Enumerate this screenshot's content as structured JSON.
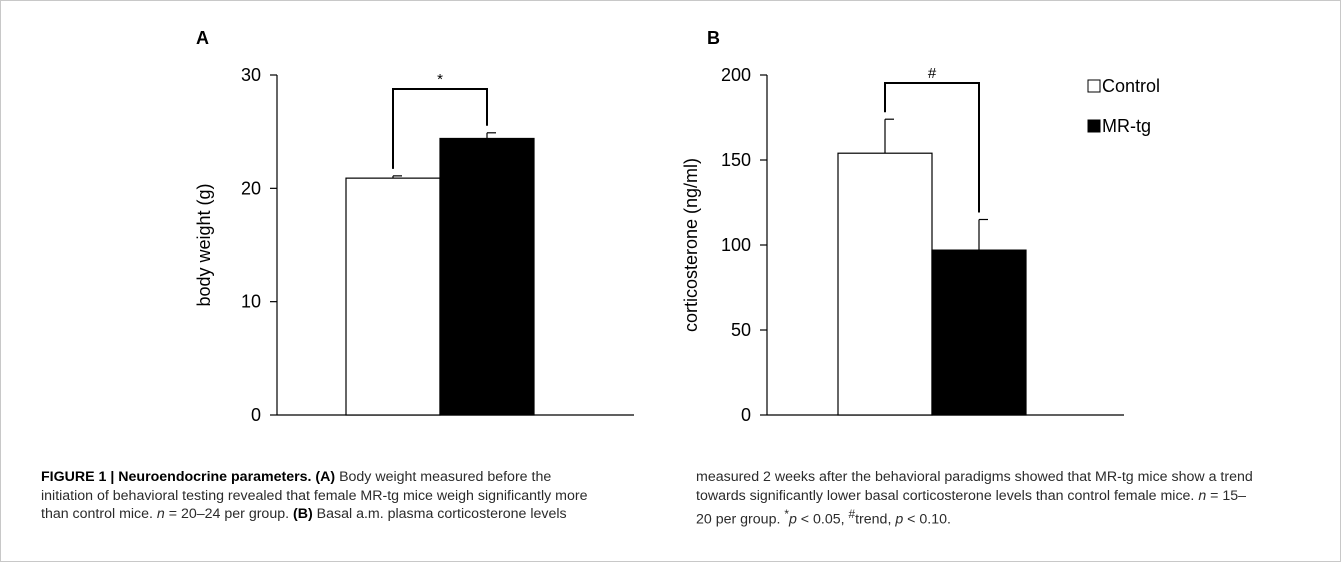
{
  "chart_data": [
    {
      "panel": "A",
      "type": "bar",
      "categories": [
        "Control",
        "MR-tg"
      ],
      "values": [
        20.9,
        24.4
      ],
      "errors": [
        0.2,
        0.5
      ],
      "ylabel": "body weight (g)",
      "ylim": [
        0,
        30
      ],
      "yticks": [
        0,
        10,
        20,
        30
      ],
      "significance": {
        "label": "*",
        "between": [
          "Control",
          "MR-tg"
        ]
      }
    },
    {
      "panel": "B",
      "type": "bar",
      "categories": [
        "Control",
        "MR-tg"
      ],
      "values": [
        154,
        97
      ],
      "errors": [
        20,
        18
      ],
      "ylabel": "corticosterone (ng/ml)",
      "ylim": [
        0,
        200
      ],
      "yticks": [
        0,
        50,
        100,
        150,
        200
      ],
      "significance": {
        "label": "#",
        "between": [
          "Control",
          "MR-tg"
        ]
      },
      "legend": {
        "position": "top-right",
        "entries": [
          {
            "label": "Control",
            "fill": "#ffffff"
          },
          {
            "label": "MR-tg",
            "fill": "#000000"
          }
        ]
      }
    }
  ],
  "colors": {
    "control": "#ffffff",
    "mrtg": "#000000",
    "caption_text": "#2b2b2b"
  },
  "caption": {
    "left": {
      "figure_label": "FIGURE 1 | Neuroendocrine parameters.",
      "a_label": "(A)",
      "a_text_1": " Body weight measured before the initiation of behavioral testing revealed that female MR-tg mice weigh significantly more than control mice. ",
      "n_a_italic": "n",
      "n_a_text": " = 20–24 per group. ",
      "b_label": "(B)",
      "b_text_1": " Basal a.m. plasma corticosterone levels"
    },
    "right": {
      "b_text_2": "measured 2 weeks after the behavioral paradigms showed that MR-tg mice show a trend towards significantly lower basal corticosterone levels than control female mice. ",
      "n_b_italic": "n",
      "n_b_text": " = 15–20 per group. ",
      "star_sup": "*",
      "p_italic_1": "p",
      "p_text_1": " < 0.05, ",
      "hash_sup": "#",
      "trend_text": "trend, ",
      "p_italic_2": "p",
      "p_text_2": " < 0.10."
    }
  }
}
